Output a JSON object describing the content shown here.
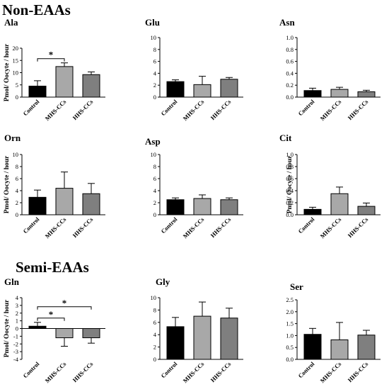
{
  "sections": [
    {
      "title": "Non-EAAs"
    },
    {
      "title": "Semi-EAAs"
    }
  ],
  "colors": {
    "Control": "#000000",
    "MHS-CCs": "#a8a8a8",
    "HHS-CCs": "#7f7f7f"
  },
  "chart_data": [
    {
      "type": "bar",
      "title": "Ala",
      "ylabel": "Pmol/ Oocyte / hour",
      "categories": [
        "Control",
        "MHS-CCs",
        "HHS-CCs"
      ],
      "values": [
        4.5,
        12.5,
        9.2
      ],
      "errors": [
        2.2,
        1.5,
        1.1
      ],
      "ylim": [
        0,
        20
      ],
      "yticks": [
        "0",
        "5",
        "10",
        "15",
        "20"
      ],
      "significance": [
        {
          "from": "Control",
          "to": "MHS-CCs",
          "label": "*"
        }
      ]
    },
    {
      "type": "bar",
      "title": "Glu",
      "ylabel": "",
      "categories": [
        "Control",
        "MHS-CCs",
        "HHS-CCs"
      ],
      "values": [
        2.6,
        2.1,
        3.0
      ],
      "errors": [
        0.3,
        1.4,
        0.3
      ],
      "ylim": [
        0,
        10
      ],
      "yticks": [
        "0",
        "2",
        "4",
        "6",
        "8",
        "10"
      ],
      "significance": []
    },
    {
      "type": "bar",
      "title": "Asn",
      "ylabel": "",
      "categories": [
        "Control",
        "MHS-CCs",
        "HHS-CCs"
      ],
      "values": [
        0.11,
        0.13,
        0.09
      ],
      "errors": [
        0.04,
        0.035,
        0.025
      ],
      "ylim": [
        0,
        1.0
      ],
      "yticks": [
        "0.0",
        "0.2",
        "0.4",
        "0.6",
        "0.8",
        "1.0"
      ],
      "significance": []
    },
    {
      "type": "bar",
      "title": "Orn",
      "ylabel": "Pmol/ Oocyte / hour",
      "categories": [
        "Control",
        "MHS-CCs",
        "HHS-CCs"
      ],
      "values": [
        2.9,
        4.4,
        3.5
      ],
      "errors": [
        1.2,
        2.7,
        1.7
      ],
      "ylim": [
        0,
        10
      ],
      "yticks": [
        "0",
        "2",
        "4",
        "6",
        "8",
        "10"
      ],
      "significance": []
    },
    {
      "type": "bar",
      "title": "Asp",
      "ylabel": "",
      "categories": [
        "Control",
        "MHS-CCs",
        "HHS-CCs"
      ],
      "values": [
        2.5,
        2.7,
        2.5
      ],
      "errors": [
        0.3,
        0.6,
        0.3
      ],
      "ylim": [
        0,
        10
      ],
      "yticks": [
        "0",
        "2",
        "4",
        "6",
        "8",
        "10"
      ],
      "significance": []
    },
    {
      "type": "bar",
      "title": "Cit",
      "ylabel": "Pmol/ Oocyte / hour",
      "categories": [
        "Control",
        "MHS-CCs",
        "HHS-CCs"
      ],
      "values": [
        0.09,
        0.35,
        0.14
      ],
      "errors": [
        0.035,
        0.11,
        0.055
      ],
      "ylim": [
        0,
        1.0
      ],
      "yticks": [
        "0.0",
        "0.2",
        "0.4",
        "0.6",
        "0.8",
        "1.0"
      ],
      "significance": []
    },
    {
      "type": "bar",
      "title": "Gln",
      "ylabel": "Pmol/ Oocyte / hour",
      "categories": [
        "Control",
        "MHS-CCs",
        "HHS-CCs"
      ],
      "values": [
        0.3,
        -1.2,
        -1.2
      ],
      "errors": [
        0.5,
        1.1,
        0.7
      ],
      "ylim": [
        -4,
        4
      ],
      "yticks": [
        "-4",
        "-3",
        "-2",
        "-1",
        "0",
        "1",
        "2",
        "3",
        "4"
      ],
      "significance": [
        {
          "from": "Control",
          "to": "MHS-CCs",
          "label": "*"
        },
        {
          "from": "Control",
          "to": "HHS-CCs",
          "label": "*"
        }
      ]
    },
    {
      "type": "bar",
      "title": "Gly",
      "ylabel": "",
      "categories": [
        "Control",
        "MHS-CCs",
        "HHS-CCs"
      ],
      "values": [
        5.3,
        7.0,
        6.7
      ],
      "errors": [
        1.5,
        2.3,
        1.6
      ],
      "ylim": [
        0,
        10
      ],
      "yticks": [
        "0",
        "2",
        "4",
        "6",
        "8",
        "10"
      ],
      "significance": []
    },
    {
      "type": "bar",
      "title": "Ser",
      "ylabel": "",
      "categories": [
        "Control",
        "MHS-CCs",
        "HHS-CCs"
      ],
      "values": [
        1.05,
        0.82,
        1.02
      ],
      "errors": [
        0.25,
        0.73,
        0.2
      ],
      "ylim": [
        0,
        2.5
      ],
      "yticks": [
        "0.0",
        "0.5",
        "1.0",
        "1.5",
        "2.0",
        "2.5"
      ],
      "significance": []
    }
  ]
}
